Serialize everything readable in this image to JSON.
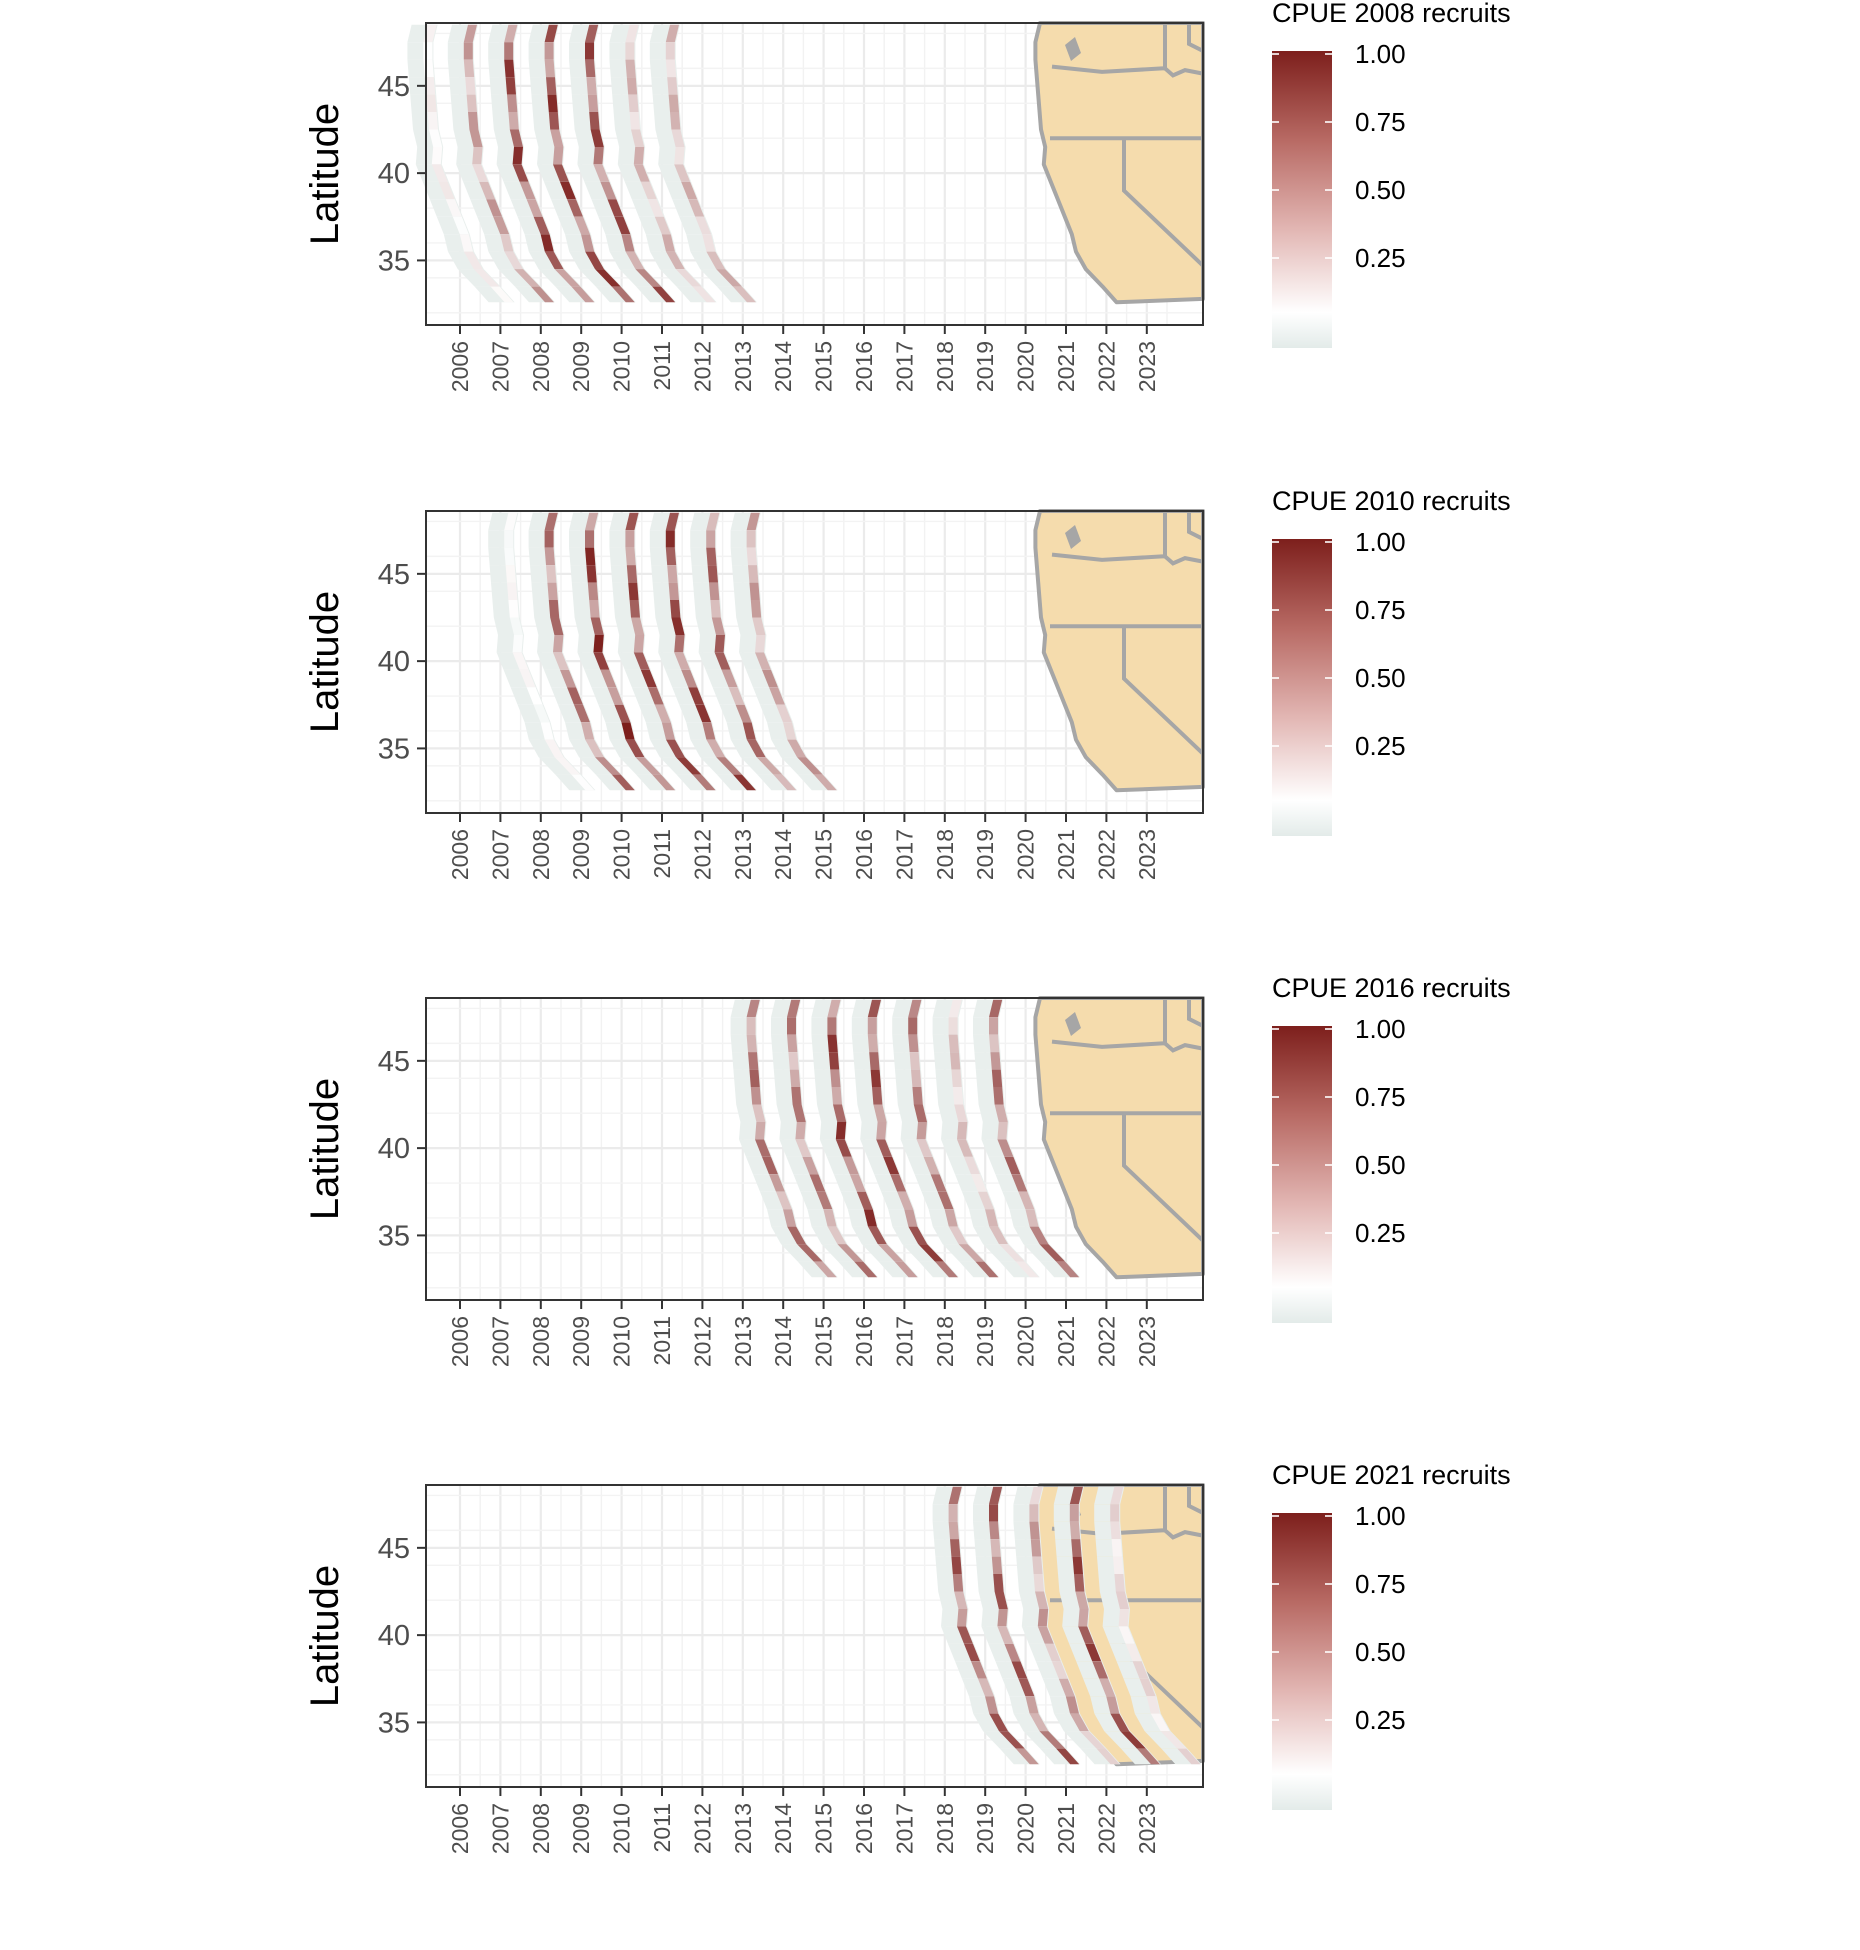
{
  "chart_data": [
    {
      "type": "heatmap",
      "title": "",
      "legend_title": "CPUE 2008 recruits",
      "xlabel": "",
      "ylabel": "Latitude",
      "x_ticks": [
        "2006",
        "2007",
        "2008",
        "2009",
        "2010",
        "2011",
        "2012",
        "2013",
        "2014",
        "2015",
        "2016",
        "2017",
        "2018",
        "2019",
        "2020",
        "2021",
        "2022",
        "2023"
      ],
      "y_ticks": [
        35,
        40,
        45
      ],
      "ylim": [
        31.3,
        48.6
      ],
      "legend": {
        "breaks": [
          "0.25",
          "0.50",
          "0.75",
          "1.00"
        ],
        "placement": "right"
      },
      "survey_years": [
        2006,
        2007,
        2008,
        2009,
        2010,
        2011,
        2012
      ],
      "cpue_peak": [
        0.2,
        0.55,
        0.95,
        0.95,
        0.9,
        0.45,
        0.45
      ]
    },
    {
      "type": "heatmap",
      "title": "",
      "legend_title": "CPUE 2010 recruits",
      "xlabel": "",
      "ylabel": "Latitude",
      "x_ticks": [
        "2006",
        "2007",
        "2008",
        "2009",
        "2010",
        "2011",
        "2012",
        "2013",
        "2014",
        "2015",
        "2016",
        "2017",
        "2018",
        "2019",
        "2020",
        "2021",
        "2022",
        "2023"
      ],
      "y_ticks": [
        35,
        40,
        45
      ],
      "ylim": [
        31.3,
        48.6
      ],
      "legend": {
        "breaks": [
          "0.25",
          "0.50",
          "0.75",
          "1.00"
        ],
        "placement": "right"
      },
      "survey_years": [
        2008,
        2009,
        2010,
        2011,
        2012,
        2013,
        2014
      ],
      "cpue_peak": [
        0.15,
        0.75,
        1.0,
        0.9,
        0.95,
        0.8,
        0.55
      ]
    },
    {
      "type": "heatmap",
      "title": "",
      "legend_title": "CPUE 2016 recruits",
      "xlabel": "",
      "ylabel": "Latitude",
      "x_ticks": [
        "2006",
        "2007",
        "2008",
        "2009",
        "2010",
        "2011",
        "2012",
        "2013",
        "2014",
        "2015",
        "2016",
        "2017",
        "2018",
        "2019",
        "2020",
        "2021",
        "2022",
        "2023"
      ],
      "y_ticks": [
        35,
        40,
        45
      ],
      "ylim": [
        31.3,
        48.6
      ],
      "legend": {
        "breaks": [
          "0.25",
          "0.50",
          "0.75",
          "1.00"
        ],
        "placement": "right"
      },
      "survey_years": [
        2014,
        2015,
        2016,
        2017,
        2018,
        2019,
        2020
      ],
      "cpue_peak": [
        0.75,
        0.7,
        0.95,
        0.9,
        0.7,
        0.4,
        0.75
      ]
    },
    {
      "type": "heatmap",
      "title": "",
      "legend_title": "CPUE 2021 recruits",
      "xlabel": "",
      "ylabel": "Latitude",
      "x_ticks": [
        "2006",
        "2007",
        "2008",
        "2009",
        "2010",
        "2011",
        "2012",
        "2013",
        "2014",
        "2015",
        "2016",
        "2017",
        "2018",
        "2019",
        "2020",
        "2021",
        "2022",
        "2023"
      ],
      "y_ticks": [
        35,
        40,
        45
      ],
      "ylim": [
        31.3,
        48.6
      ],
      "legend": {
        "breaks": [
          "0.25",
          "0.50",
          "0.75",
          "1.00"
        ],
        "placement": "right"
      },
      "survey_years": [
        2019,
        2020,
        2021,
        2022,
        2023
      ],
      "cpue_peak": [
        0.85,
        0.85,
        0.55,
        0.9,
        0.3
      ]
    }
  ],
  "colors": {
    "low": "#e3ebe9",
    "mid": "#ffffff",
    "high": "#7d1f1c",
    "land": "#f5dcad",
    "borders": "#a6a6a6",
    "panel_border": "#333333",
    "grid": "#ebebeb"
  }
}
